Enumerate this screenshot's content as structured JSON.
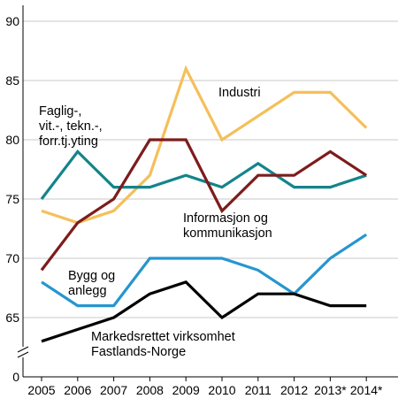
{
  "chart_data": {
    "type": "line",
    "categories": [
      "2005",
      "2006",
      "2007",
      "2008",
      "2009",
      "2010",
      "2011",
      "2012",
      "2013*",
      "2014*"
    ],
    "yticks": [
      "0",
      "65",
      "70",
      "75",
      "80",
      "85",
      "90"
    ],
    "ylim": [
      62.5,
      90
    ],
    "y_axis_break": true,
    "grid": "horizontal",
    "legend": "inline labels",
    "series": [
      {
        "name": "Industri",
        "color": "#f5bf5a",
        "values": [
          74,
          73,
          74,
          77,
          86,
          80,
          82,
          84,
          84,
          81
        ],
        "label_lines": [
          "Industri"
        ]
      },
      {
        "name": "Faglig-, vit.-, tekn.-, forr.tj.yting",
        "color": "#13848c",
        "values": [
          75,
          79,
          76,
          76,
          77,
          76,
          78,
          76,
          76,
          77
        ],
        "label_lines": [
          "Faglig-,",
          "vit.-, tekn.-,",
          "forr.tj.yting"
        ]
      },
      {
        "name": "Informasjon og kommunikasjon",
        "color": "#7d1c1c",
        "values": [
          69,
          73,
          75,
          80,
          80,
          74,
          77,
          77,
          79,
          77
        ],
        "label_lines": [
          "Informasjon og",
          "kommunikasjon"
        ]
      },
      {
        "name": "Bygg og anlegg",
        "color": "#2596cf",
        "values": [
          68,
          66,
          66,
          70,
          70,
          70,
          69,
          67,
          70,
          72
        ],
        "label_lines": [
          "Bygg og",
          "anlegg"
        ]
      },
      {
        "name": "Markedsrettet virksomhet Fastlands-Norge",
        "color": "#000000",
        "values": [
          63,
          64,
          65,
          67,
          68,
          65,
          67,
          67,
          66,
          66
        ],
        "label_lines": [
          "Markedsrettet virksomhet",
          "Fastlands-Norge"
        ]
      }
    ]
  }
}
